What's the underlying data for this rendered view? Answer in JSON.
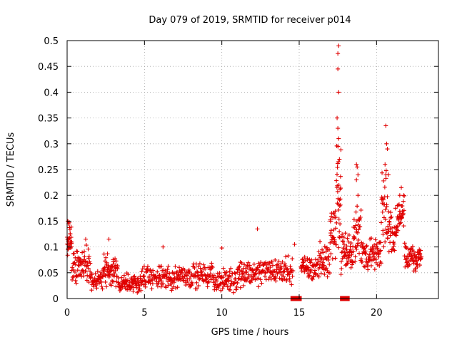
{
  "chart_data": {
    "type": "scatter",
    "title": "Day 079 of 2019, SRMTID for receiver p014",
    "xlabel": "GPS time / hours",
    "ylabel": "SRMTID / TECUs",
    "xlim": [
      0,
      24
    ],
    "ylim": [
      0,
      0.5
    ],
    "x_ticks": [
      0,
      5,
      10,
      15,
      20
    ],
    "x_tick_labels": [
      "0",
      "5",
      "10",
      "15",
      "20"
    ],
    "y_ticks": [
      0,
      0.05,
      0.1,
      0.15,
      0.2,
      0.25,
      0.3,
      0.35,
      0.4,
      0.45,
      0.5
    ],
    "y_tick_labels": [
      "0",
      "0.05",
      "0.1",
      "0.15",
      "0.2",
      "0.25",
      "0.3",
      "0.35",
      "0.4",
      "0.45",
      "0.5"
    ],
    "grid": true,
    "marker": "plus",
    "point_color": "#e00000",
    "series": [
      {
        "name": "SRMTID",
        "segments": [
          {
            "x_start": 0.0,
            "x_end": 0.3,
            "n": 30,
            "base": 0.11,
            "spread": 0.045
          },
          {
            "x_start": 0.3,
            "x_end": 1.5,
            "n": 70,
            "base": 0.065,
            "spread": 0.04
          },
          {
            "x_start": 1.5,
            "x_end": 2.3,
            "n": 45,
            "base": 0.035,
            "spread": 0.022
          },
          {
            "x_start": 2.3,
            "x_end": 3.3,
            "n": 65,
            "base": 0.055,
            "spread": 0.04
          },
          {
            "x_start": 3.3,
            "x_end": 4.8,
            "n": 80,
            "base": 0.03,
            "spread": 0.022
          },
          {
            "x_start": 4.8,
            "x_end": 7.0,
            "n": 110,
            "base": 0.04,
            "spread": 0.028
          },
          {
            "x_start": 7.0,
            "x_end": 9.5,
            "n": 120,
            "base": 0.045,
            "spread": 0.028
          },
          {
            "x_start": 9.5,
            "x_end": 11.0,
            "n": 75,
            "base": 0.035,
            "spread": 0.025
          },
          {
            "x_start": 11.0,
            "x_end": 12.5,
            "n": 75,
            "base": 0.05,
            "spread": 0.03
          },
          {
            "x_start": 12.5,
            "x_end": 14.6,
            "n": 100,
            "base": 0.055,
            "spread": 0.03
          },
          {
            "x_start": 15.1,
            "x_end": 16.2,
            "n": 60,
            "base": 0.06,
            "spread": 0.03
          },
          {
            "x_start": 16.2,
            "x_end": 17.0,
            "n": 45,
            "base": 0.075,
            "spread": 0.04
          },
          {
            "x_start": 17.0,
            "x_end": 17.4,
            "n": 30,
            "base": 0.13,
            "spread": 0.07
          },
          {
            "x_start": 17.4,
            "x_end": 17.7,
            "n": 30,
            "base": 0.2,
            "spread": 0.12
          },
          {
            "x_start": 17.7,
            "x_end": 18.5,
            "n": 55,
            "base": 0.09,
            "spread": 0.045
          },
          {
            "x_start": 18.5,
            "x_end": 19.0,
            "n": 35,
            "base": 0.13,
            "spread": 0.07
          },
          {
            "x_start": 19.0,
            "x_end": 20.3,
            "n": 75,
            "base": 0.085,
            "spread": 0.04
          },
          {
            "x_start": 20.3,
            "x_end": 20.8,
            "n": 35,
            "base": 0.17,
            "spread": 0.1
          },
          {
            "x_start": 20.8,
            "x_end": 21.3,
            "n": 35,
            "base": 0.13,
            "spread": 0.05
          },
          {
            "x_start": 21.3,
            "x_end": 21.8,
            "n": 35,
            "base": 0.16,
            "spread": 0.05
          },
          {
            "x_start": 21.8,
            "x_end": 22.9,
            "n": 70,
            "base": 0.08,
            "spread": 0.035
          }
        ],
        "points": [
          [
            17.55,
            0.49
          ],
          [
            17.5,
            0.475
          ],
          [
            17.5,
            0.445
          ],
          [
            17.55,
            0.4
          ],
          [
            17.45,
            0.35
          ],
          [
            17.5,
            0.33
          ],
          [
            17.55,
            0.31
          ],
          [
            17.6,
            0.27
          ],
          [
            20.6,
            0.335
          ],
          [
            20.65,
            0.3
          ],
          [
            20.7,
            0.29
          ],
          [
            20.55,
            0.26
          ],
          [
            20.6,
            0.24
          ],
          [
            18.7,
            0.26
          ],
          [
            18.75,
            0.255
          ],
          [
            18.8,
            0.24
          ],
          [
            18.7,
            0.23
          ],
          [
            18.8,
            0.2
          ],
          [
            12.3,
            0.135
          ],
          [
            1.2,
            0.115
          ],
          [
            2.7,
            0.115
          ],
          [
            6.2,
            0.1
          ],
          [
            10.0,
            0.098
          ],
          [
            14.7,
            0.105
          ],
          [
            0.05,
            0.15
          ],
          [
            0.1,
            0.145
          ],
          [
            21.6,
            0.215
          ],
          [
            21.5,
            0.2
          ]
        ],
        "zero_markers": [
          14.6,
          14.8,
          15.0,
          17.8,
          18.1
        ]
      }
    ]
  }
}
